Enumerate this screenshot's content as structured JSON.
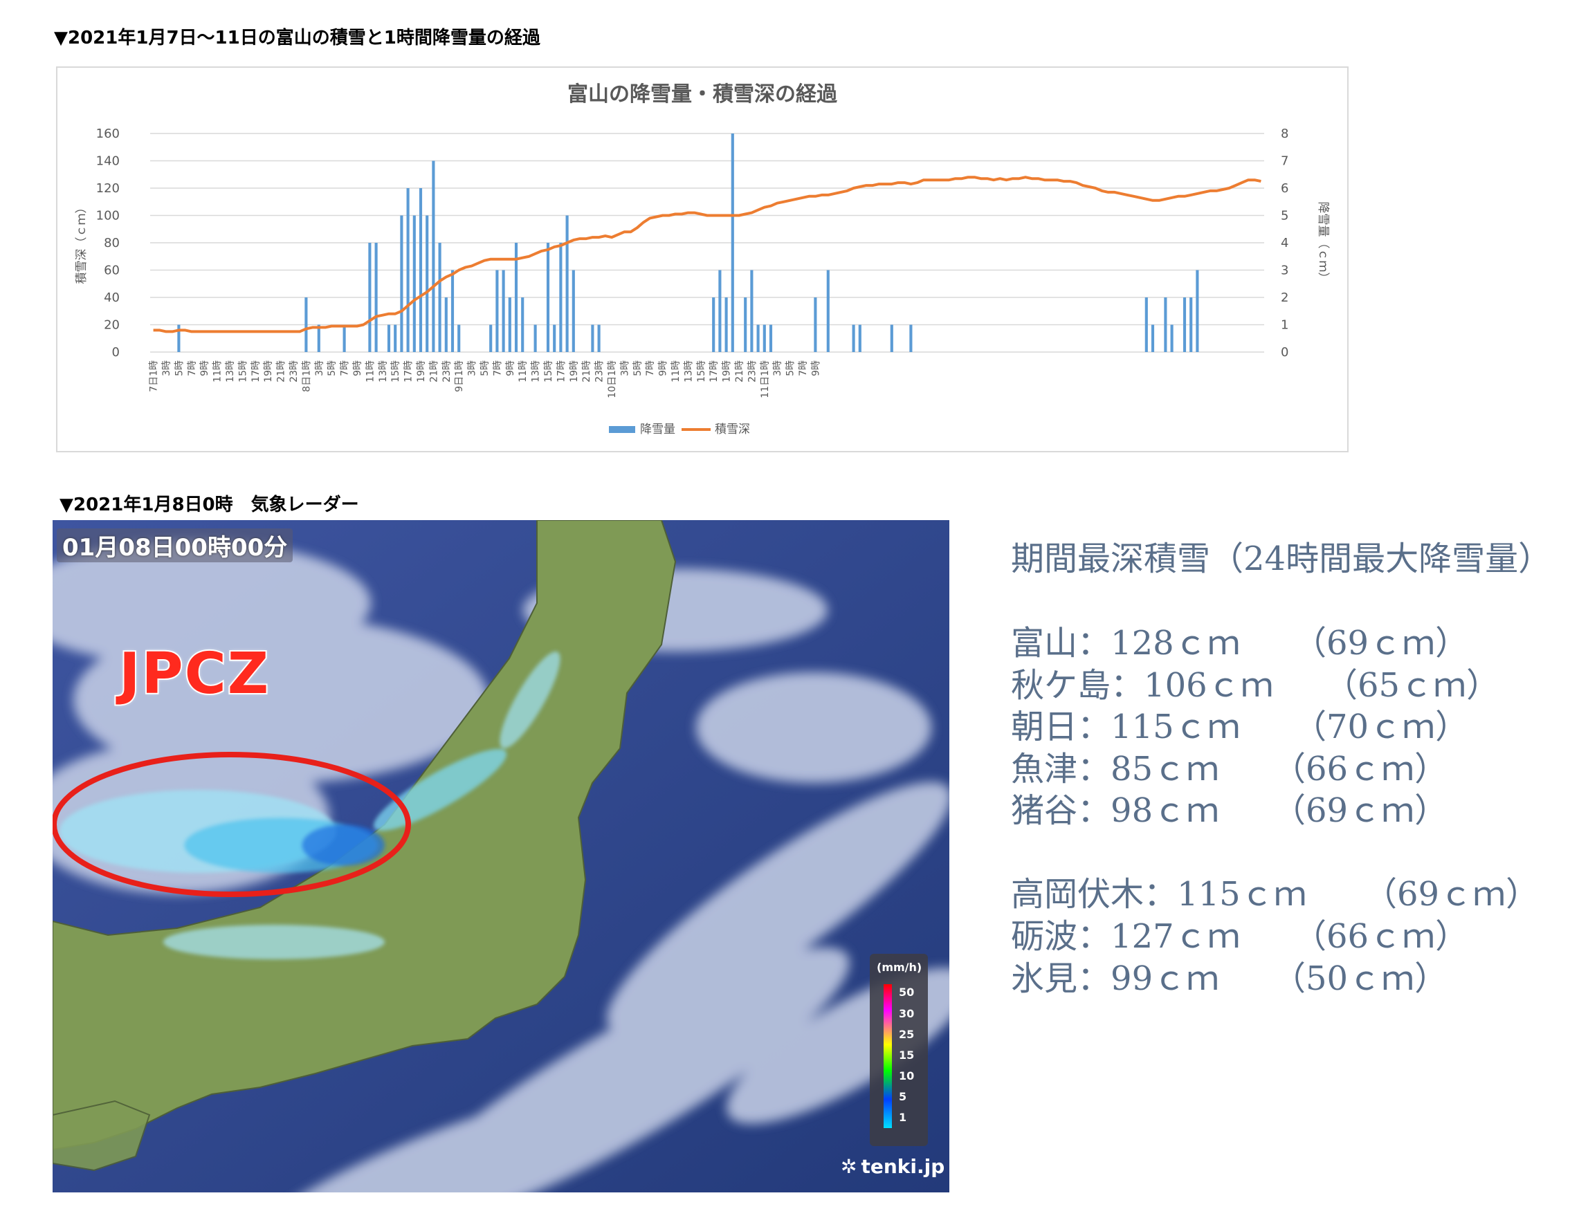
{
  "headings": {
    "chart": "▼2021年1月7日～11日の富山の積雪と1時間降雪量の経過",
    "radar": "▼2021年1月8日0時　気象レーダー"
  },
  "chart_data": {
    "type": "bar+line",
    "title": "富山の降雪量・積雪深の経過",
    "ylabel_left": "積雪深（ｃｍ）",
    "ylabel_right": "降雪量（ｃｍ）",
    "ylim_left": [
      0,
      160
    ],
    "yticks_left": [
      0,
      20,
      40,
      60,
      80,
      100,
      120,
      140,
      160
    ],
    "ylim_right": [
      0,
      8
    ],
    "yticks_right": [
      0,
      1,
      2,
      3,
      4,
      5,
      6,
      7,
      8
    ],
    "grid": true,
    "legend_position": "bottom",
    "x_tick_labels": [
      "7日1時",
      "3時",
      "5時",
      "7時",
      "9時",
      "11時",
      "13時",
      "15時",
      "17時",
      "19時",
      "21時",
      "23時",
      "8日1時",
      "3時",
      "5時",
      "7時",
      "9時",
      "11時",
      "13時",
      "15時",
      "17時",
      "19時",
      "21時",
      "23時",
      "9日1時",
      "3時",
      "5時",
      "7時",
      "9時",
      "11時",
      "13時",
      "15時",
      "17時",
      "19時",
      "21時",
      "23時",
      "10日1時",
      "3時",
      "5時",
      "7時",
      "9時",
      "11時",
      "13時",
      "15時",
      "17時",
      "19時",
      "21時",
      "23時",
      "11日1時",
      "3時",
      "5時",
      "7時",
      "9時"
    ],
    "series": [
      {
        "name": "降雪量",
        "type": "bar",
        "axis": "right",
        "color": "#5b9bd5",
        "values": [
          0,
          0,
          0,
          0,
          1,
          0,
          0,
          0,
          0,
          0,
          0,
          0,
          0,
          0,
          0,
          0,
          0,
          0,
          0,
          0,
          0,
          0,
          0,
          0,
          2,
          0,
          1,
          0,
          0,
          0,
          1,
          0,
          0,
          0,
          4,
          4,
          0,
          1,
          1,
          5,
          6,
          5,
          6,
          5,
          7,
          4,
          2,
          3,
          1,
          0,
          0,
          0,
          0,
          1,
          3,
          3,
          2,
          4,
          2,
          0,
          1,
          0,
          4,
          1,
          4,
          5,
          3,
          0,
          0,
          1,
          1,
          0,
          0,
          0,
          0,
          0,
          0,
          0,
          0,
          0,
          0,
          0,
          0,
          0,
          0,
          0,
          0,
          0,
          2,
          3,
          2,
          8,
          0,
          2,
          3,
          1,
          1,
          1,
          0,
          0,
          0,
          0,
          0,
          0,
          2,
          0,
          3,
          0,
          0,
          0,
          1,
          1,
          0,
          0,
          0,
          0,
          1,
          0,
          0,
          1,
          0,
          0,
          0,
          0,
          0,
          0,
          0,
          0,
          0,
          0,
          0,
          0,
          0,
          0,
          0,
          0,
          0,
          0,
          0,
          0,
          0,
          0,
          0,
          0,
          0,
          0,
          0,
          0,
          0,
          0,
          0,
          0,
          0,
          0,
          0,
          0,
          2,
          1,
          0,
          2,
          1,
          0,
          2,
          2,
          3,
          0,
          0
        ]
      },
      {
        "name": "積雪深",
        "type": "line",
        "axis": "left",
        "color": "#ed7d31",
        "values": [
          16,
          16,
          15,
          15,
          16,
          16,
          15,
          15,
          15,
          15,
          15,
          15,
          15,
          15,
          15,
          15,
          15,
          15,
          15,
          15,
          15,
          15,
          15,
          15,
          17,
          18,
          18,
          18,
          19,
          19,
          19,
          19,
          19,
          20,
          23,
          26,
          27,
          28,
          28,
          30,
          34,
          38,
          41,
          44,
          48,
          52,
          55,
          57,
          60,
          62,
          63,
          65,
          67,
          68,
          68,
          68,
          68,
          68,
          69,
          70,
          72,
          74,
          75,
          77,
          78,
          80,
          82,
          83,
          83,
          84,
          84,
          85,
          84,
          86,
          88,
          88,
          91,
          95,
          98,
          99,
          100,
          100,
          101,
          101,
          102,
          102,
          101,
          100,
          100,
          100,
          100,
          100,
          100,
          101,
          102,
          104,
          106,
          107,
          109,
          110,
          111,
          112,
          113,
          114,
          114,
          115,
          115,
          116,
          117,
          118,
          120,
          121,
          122,
          122,
          123,
          123,
          123,
          124,
          124,
          123,
          124,
          126,
          126,
          126,
          126,
          126,
          127,
          127,
          128,
          128,
          127,
          127,
          126,
          127,
          126,
          127,
          127,
          128,
          127,
          127,
          126,
          126,
          126,
          125,
          125,
          124,
          122,
          121,
          120,
          118,
          117,
          117,
          116,
          115,
          114,
          113,
          112,
          111,
          111,
          112,
          113,
          114,
          114,
          115,
          116,
          117,
          118,
          118,
          119,
          120,
          122,
          124,
          126,
          126,
          125
        ]
      }
    ]
  },
  "radar": {
    "timestamp": "01月08日00時00分",
    "annotation": "JPCZ",
    "legend_unit": "(mm/h)",
    "legend_values": [
      "50",
      "30",
      "25",
      "15",
      "10",
      "5",
      "1"
    ],
    "logo": "tenki.jp"
  },
  "stats": {
    "title": "期間最深積雪（24時間最大降雪量）",
    "group1": [
      {
        "place": "富山",
        "depth": "128ｃｍ",
        "max24": "（69ｃｍ）"
      },
      {
        "place": "秋ケ島",
        "depth": "106ｃｍ",
        "max24": "（65ｃｍ）"
      },
      {
        "place": "朝日",
        "depth": "115ｃｍ",
        "max24": "（70ｃｍ）"
      },
      {
        "place": "魚津",
        "depth": "85ｃｍ",
        "max24": "（66ｃｍ）"
      },
      {
        "place": "猪谷",
        "depth": "98ｃｍ",
        "max24": "（69ｃｍ）"
      }
    ],
    "group2": [
      {
        "place": "高岡伏木",
        "depth": "115ｃｍ",
        "max24": "（69ｃｍ）"
      },
      {
        "place": "砺波",
        "depth": "127ｃｍ",
        "max24": "（66ｃｍ）"
      },
      {
        "place": "氷見",
        "depth": "99ｃｍ",
        "max24": "（50ｃｍ）"
      }
    ]
  }
}
